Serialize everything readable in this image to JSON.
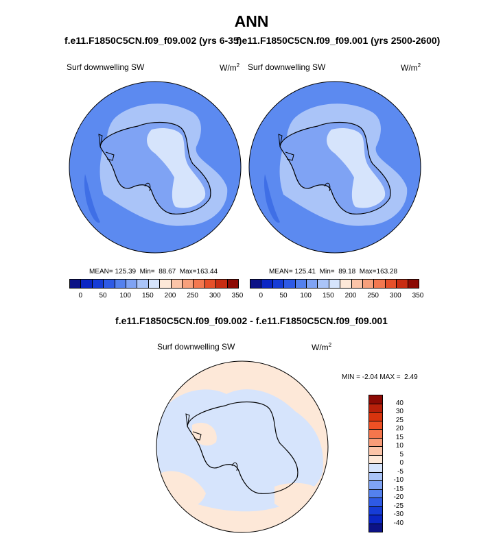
{
  "header": {
    "title": "ANN"
  },
  "panels": [
    {
      "case": "f.e11.F1850C5CN.f09_f09.002 (yrs 6-35)",
      "variable": "Surf downwelling SW",
      "unit_base": "W/m",
      "unit_exp": "2",
      "stats": {
        "mean_label": "MEAN=",
        "mean": "125.39",
        "min_label": "Min=",
        "min": "88.67",
        "max_label": "Max=",
        "max": "163.44"
      }
    },
    {
      "case": "f.e11.F1850C5CN.f09_f09.001 (yrs 2500-2600)",
      "variable": "Surf downwelling SW",
      "unit_base": "W/m",
      "unit_exp": "2",
      "stats": {
        "mean_label": "MEAN=",
        "mean": "125.41",
        "min_label": "Min=",
        "min": "89.18",
        "max_label": "Max=",
        "max": "163.28"
      }
    }
  ],
  "colorbar_abs": {
    "colors": [
      "#0c1286",
      "#0b26c4",
      "#163cd6",
      "#2e5ae5",
      "#5481ee",
      "#7fa3f4",
      "#aac4f8",
      "#d6e4fc",
      "#fde8d8",
      "#fbc4a8",
      "#f7a07c",
      "#f37850",
      "#e6502a",
      "#c82c12",
      "#8c0a04"
    ],
    "ticks": [
      "0",
      "50",
      "100",
      "150",
      "200",
      "250",
      "300",
      "350"
    ]
  },
  "diff": {
    "title": "f.e11.F1850C5CN.f09_f09.002 - f.e11.F1850C5CN.f09_f09.001",
    "variable": "Surf downwelling SW",
    "unit_base": "W/m",
    "unit_exp": "2",
    "stats": {
      "min_label": "MIN =",
      "min": "-2.04",
      "max_label": "MAX =",
      "max": "2.49"
    }
  },
  "colorbar_diff": {
    "colors": [
      "#8c0a04",
      "#b8200a",
      "#d8340e",
      "#ee5024",
      "#f5764c",
      "#f89c78",
      "#fbc4a8",
      "#fde8d8",
      "#d6e4fc",
      "#aac4f8",
      "#7fa3f4",
      "#5481ee",
      "#2e5ae5",
      "#163cd6",
      "#0b26c4",
      "#0c1286"
    ],
    "ticks": [
      "40",
      "30",
      "25",
      "20",
      "15",
      "10",
      "5",
      "0",
      "-5",
      "-10",
      "-15",
      "-20",
      "-25",
      "-30",
      "-40"
    ]
  },
  "map_colors": {
    "ocean": "#5c8af0",
    "band_light": "#aac4f8",
    "interior": "#d6e4fc",
    "coast_blue": "#7fa3f4",
    "strip": "#3f6fe6",
    "diff_pos": "#fde8d8",
    "diff_neg": "#d6e4fc"
  }
}
